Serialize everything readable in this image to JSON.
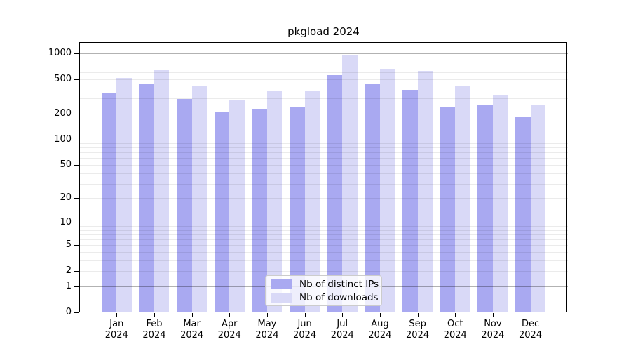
{
  "chart_data": {
    "type": "bar",
    "title": "pkgload 2024",
    "yscale": "log1p",
    "ylabel": "",
    "xlabel": "",
    "categories": [
      "Jan",
      "Feb",
      "Mar",
      "Apr",
      "May",
      "Jun",
      "Jul",
      "Aug",
      "Sep",
      "Oct",
      "Nov",
      "Dec"
    ],
    "category_year": "2024",
    "y_ticks": [
      0,
      1,
      2,
      5,
      10,
      20,
      50,
      100,
      200,
      500,
      1000
    ],
    "grid": {
      "major_at": [
        1,
        10,
        100,
        1000
      ],
      "minor_at": "2..9 per decade",
      "visible": true
    },
    "series": [
      {
        "name": "Nb of distinct IPs",
        "color": "#a9a9f1",
        "values": [
          350,
          445,
          295,
          210,
          225,
          240,
          560,
          435,
          380,
          235,
          250,
          185
        ]
      },
      {
        "name": "Nb of downloads",
        "color": "#d9d9f7",
        "values": [
          515,
          640,
          420,
          290,
          370,
          360,
          940,
          650,
          630,
          420,
          330,
          255
        ]
      }
    ],
    "legend": {
      "labels": [
        "Nb of distinct IPs",
        "Nb of downloads"
      ],
      "position": "bottom-center"
    }
  },
  "colors": {
    "background": "#ffffff",
    "bar_distinct_ips": "#a9a9f1",
    "bar_downloads": "#d9d9f7",
    "axis": "#000000",
    "grid_major": "#b3b3b3",
    "grid_minor": "#ebebeb",
    "text": "#000000"
  }
}
